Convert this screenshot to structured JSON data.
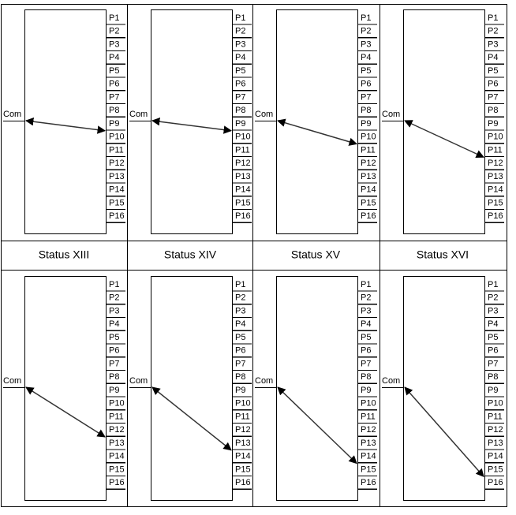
{
  "top_row": {
    "panels": [
      {
        "com": "Com",
        "ports": [
          "P1",
          "P2",
          "P3",
          "P4",
          "P5",
          "P6",
          "P7",
          "P8",
          "P9",
          "P10",
          "P11",
          "P12",
          "P13",
          "P14",
          "P15",
          "P16"
        ]
      },
      {
        "com": "Com",
        "ports": [
          "P1",
          "P2",
          "P3",
          "P4",
          "P5",
          "P6",
          "P7",
          "P8",
          "P9",
          "P10",
          "P11",
          "P12",
          "P13",
          "P14",
          "P15",
          "P16"
        ]
      },
      {
        "com": "Com",
        "ports": [
          "P1",
          "P2",
          "P3",
          "P4",
          "P5",
          "P6",
          "P7",
          "P8",
          "P9",
          "P10",
          "P11",
          "P12",
          "P13",
          "P14",
          "P15",
          "P16"
        ]
      },
      {
        "com": "Com",
        "ports": [
          "P1",
          "P2",
          "P3",
          "P4",
          "P5",
          "P6",
          "P7",
          "P8",
          "P9",
          "P10",
          "P11",
          "P12",
          "P13",
          "P14",
          "P15",
          "P16"
        ]
      }
    ]
  },
  "captions": [
    "Status  XIII",
    "Status  XIV",
    "Status  XV",
    "Status  XVI"
  ],
  "bottom_row": {
    "panels": [
      {
        "com": "Com",
        "ports": [
          "P1",
          "P2",
          "P3",
          "P4",
          "P5",
          "P6",
          "P7",
          "P8",
          "P9",
          "P10",
          "P11",
          "P12",
          "P13",
          "P14",
          "P15",
          "P16"
        ]
      },
      {
        "com": "Com",
        "ports": [
          "P1",
          "P2",
          "P3",
          "P4",
          "P5",
          "P6",
          "P7",
          "P8",
          "P9",
          "P10",
          "P11",
          "P12",
          "P13",
          "P14",
          "P15",
          "P16"
        ]
      },
      {
        "com": "Com",
        "ports": [
          "P1",
          "P2",
          "P3",
          "P4",
          "P5",
          "P6",
          "P7",
          "P8",
          "P9",
          "P10",
          "P11",
          "P12",
          "P13",
          "P14",
          "P15",
          "P16"
        ]
      },
      {
        "com": "Com",
        "ports": [
          "P1",
          "P2",
          "P3",
          "P4",
          "P5",
          "P6",
          "P7",
          "P8",
          "P9",
          "P10",
          "P11",
          "P12",
          "P13",
          "P14",
          "P15",
          "P16"
        ]
      }
    ]
  }
}
